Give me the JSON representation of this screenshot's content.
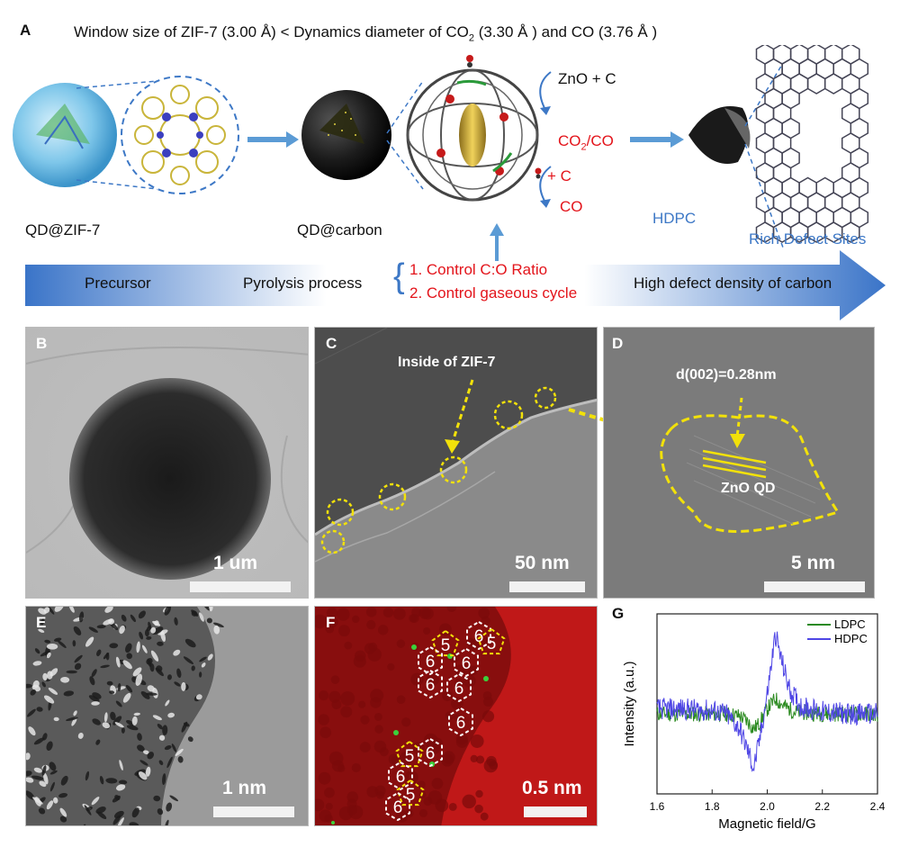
{
  "panel_a": {
    "letter": "A",
    "title_prefix": "Window size of ZIF-7 (3.00 Å) < Dynamics diameter of CO",
    "title_sub": "2",
    "title_suffix": " (3.30 Å ) and CO (3.76 Å )",
    "label_qd_zif7": "QD@ZIF-7",
    "label_qd_carbon": "QD@carbon",
    "label_zno_c": "ZnO + C",
    "label_co2_prefix": "CO",
    "label_co2_sub": "2",
    "label_co2_suffix": "/CO",
    "label_plus_c": "+ C",
    "label_co": "CO",
    "label_hdpc": "HDPC",
    "label_rich_defect": "Rich Defect Sites",
    "flow": {
      "precursor": "Precursor",
      "pyrolysis": "Pyrolysis process",
      "step1": "1. Control C:O Ratio",
      "step2": "2. Control gaseous cycle",
      "high_defect": "High defect density of carbon"
    }
  },
  "panel_b": {
    "letter": "B",
    "scale": "1 um"
  },
  "panel_c": {
    "letter": "C",
    "scale": "50 nm",
    "annotation": "Inside of ZIF-7"
  },
  "panel_d": {
    "letter": "D",
    "scale": "5 nm",
    "d_spacing": "d(002)=0.28nm",
    "qd_label": "ZnO QD"
  },
  "panel_e": {
    "letter": "E",
    "scale": "1 nm"
  },
  "panel_f": {
    "letter": "F",
    "scale": "0.5 nm",
    "rings": [
      "6",
      "5",
      "6",
      "6",
      "5",
      "6",
      "6",
      "6",
      "5",
      "6",
      "6",
      "5",
      "6"
    ]
  },
  "panel_g": {
    "letter": "G"
  },
  "chart_data": {
    "type": "line",
    "xlabel": "Magnetic field/G",
    "ylabel": "Intensity (a.u.)",
    "xlim": [
      1.6,
      2.4
    ],
    "x_ticks": [
      "1.6",
      "1.8",
      "2.0",
      "2.2",
      "2.4"
    ],
    "legend_position": "top-right",
    "series": [
      {
        "name": "LDPC",
        "color": "#2a8a1f",
        "x": [
          1.6,
          1.7,
          1.8,
          1.85,
          1.9,
          1.93,
          1.95,
          1.97,
          2.0,
          2.03,
          2.06,
          2.1,
          2.2,
          2.3,
          2.4
        ],
        "y": [
          0.0,
          0.0,
          0.0,
          0.0,
          -0.02,
          -0.08,
          -0.15,
          -0.1,
          0.05,
          0.15,
          0.08,
          0.02,
          0.0,
          0.0,
          0.0
        ]
      },
      {
        "name": "HDPC",
        "color": "#4f46e5",
        "x": [
          1.6,
          1.7,
          1.8,
          1.85,
          1.9,
          1.92,
          1.94,
          1.95,
          1.97,
          2.0,
          2.02,
          2.03,
          2.05,
          2.08,
          2.12,
          2.2,
          2.3,
          2.4
        ],
        "y": [
          0.05,
          0.05,
          0.03,
          0.0,
          -0.15,
          -0.3,
          -0.45,
          -0.55,
          -0.3,
          0.2,
          0.6,
          0.8,
          0.55,
          0.25,
          0.08,
          0.02,
          0.0,
          0.0
        ]
      }
    ]
  }
}
